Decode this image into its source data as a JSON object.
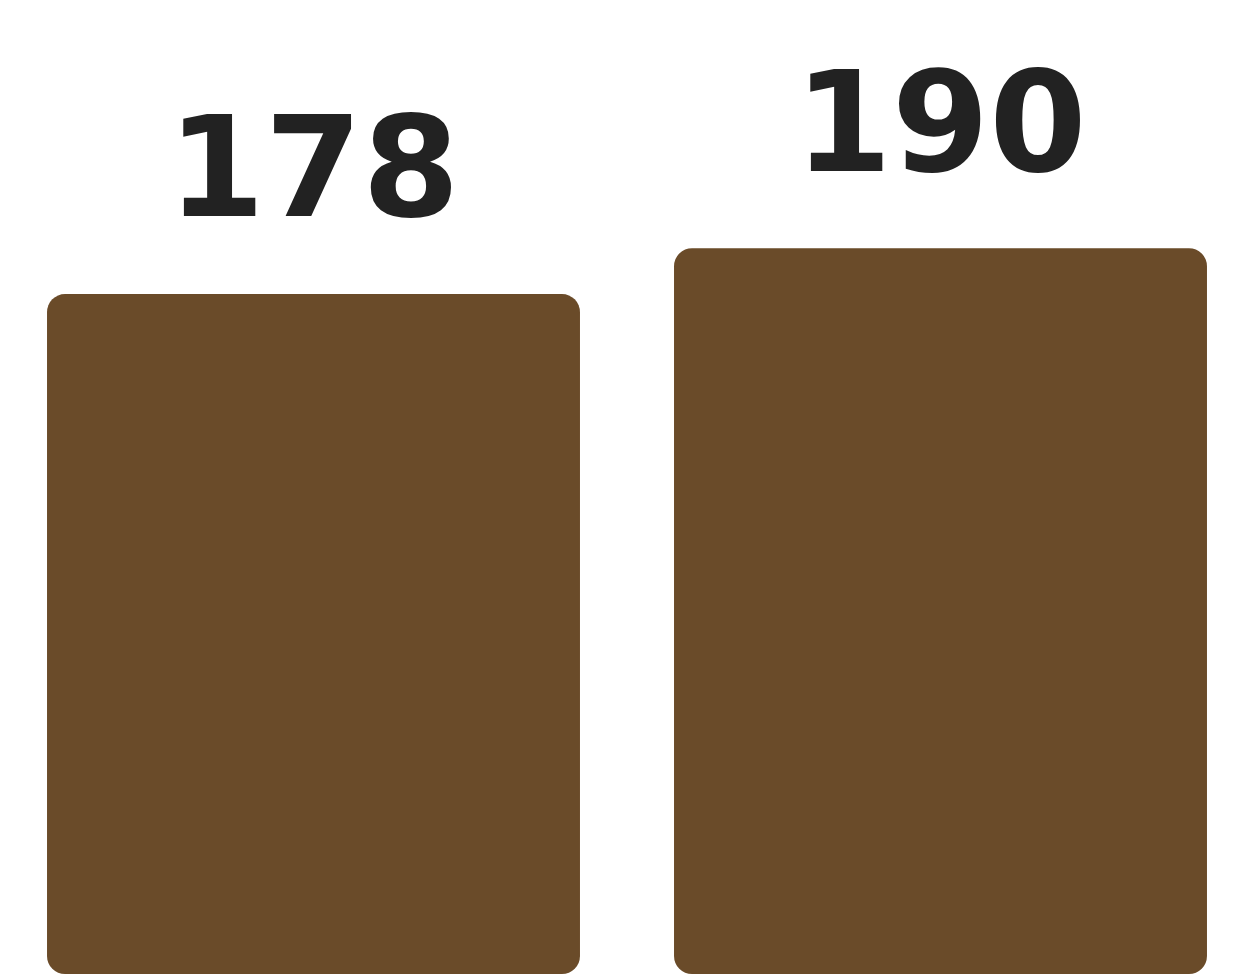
{
  "chart_data": {
    "type": "bar",
    "relative": false,
    "categories": [
      null,
      null
    ],
    "values": [
      178,
      190
    ],
    "color": "#6a4b29",
    "data_labels": true,
    "grid": false,
    "legend": false,
    "tick_labels": false
  }
}
